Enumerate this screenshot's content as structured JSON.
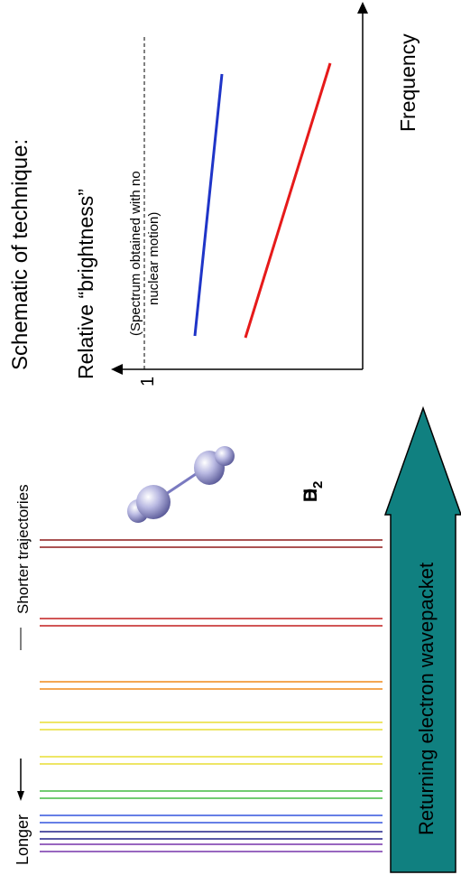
{
  "title": "Schematic of technique:",
  "y_axis": {
    "label": "Relative “brightness”",
    "tick_label": "1"
  },
  "x_axis": {
    "label": "Frequency"
  },
  "annotation": "(Spectrum obtained with no nuclear motion)",
  "annotation_lines": [
    "(Spectrum obtained with no",
    "nuclear motion)"
  ],
  "trajectory_labels": {
    "longer": "Longer",
    "shorter": "Shorter trajectories"
  },
  "molecule_label": "D₂ / H₂",
  "molecule_label_parts": {
    "d": "D",
    "h": "H",
    "subscript": "2"
  },
  "arrow_label": "Returning electron wavepacket",
  "colors": {
    "blue_line": "#1f35c8",
    "red_line": "#e61a1a",
    "arrow_fill": "#108080",
    "molecule": "#9a9ad0"
  },
  "spectral_lines": [
    {
      "color": "#8e1a1a"
    },
    {
      "color": "#8e1a1a"
    },
    {
      "color": "#c21f1f"
    },
    {
      "color": "#c21f1f"
    },
    {
      "color": "#f08a1a"
    },
    {
      "color": "#f08a1a"
    },
    {
      "color": "#e8dd33"
    },
    {
      "color": "#e8dd33"
    },
    {
      "color": "#e8dd33"
    },
    {
      "color": "#e8dd33"
    },
    {
      "color": "#44bb44"
    },
    {
      "color": "#44bb44"
    },
    {
      "color": "#3355dd"
    },
    {
      "color": "#3355dd"
    },
    {
      "color": "#222288"
    },
    {
      "color": "#222288"
    },
    {
      "color": "#7733aa"
    },
    {
      "color": "#7733aa"
    }
  ]
}
